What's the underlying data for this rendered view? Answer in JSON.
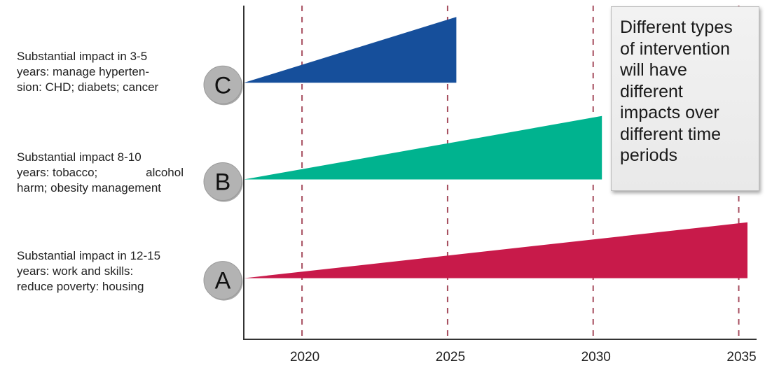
{
  "chart_data": {
    "type": "area",
    "x_ticks": [
      2020,
      2025,
      2030,
      2035
    ],
    "xlim": [
      2018,
      2035.3
    ],
    "ylim": [
      0,
      10
    ],
    "grid": "vertical dashed at ticks",
    "series": [
      {
        "name": "C",
        "color": "#164f9b",
        "start": 2018,
        "end": 2025.3,
        "baseline": 7.72,
        "end_top": 9.7,
        "label_lines": [
          "Substantial impact in 3-5",
          "years: manage hyperten-",
          "sion: CHD; diabets; cancer"
        ]
      },
      {
        "name": "B",
        "color": "#00b38f",
        "start": 2018,
        "end": 2030.3,
        "baseline": 4.81,
        "end_top": 6.72,
        "label_lines": [
          "Substantial impact 8-10",
          "years: tobacco; alcohol",
          "harm; obesity management"
        ]
      },
      {
        "name": "A",
        "color": "#c81a4a",
        "start": 2018,
        "end": 2035.3,
        "baseline": 1.84,
        "end_top": 3.52,
        "label_lines": [
          "Substantial impact in 12-15",
          "years: work and skills:",
          "reduce poverty: housing"
        ]
      }
    ],
    "annotation": "Different types of intervention will have different impacts over different time periods"
  },
  "callout_lines": [
    "Different types",
    "of intervention",
    "will have",
    "different",
    "impacts over",
    "different time",
    "periods"
  ]
}
